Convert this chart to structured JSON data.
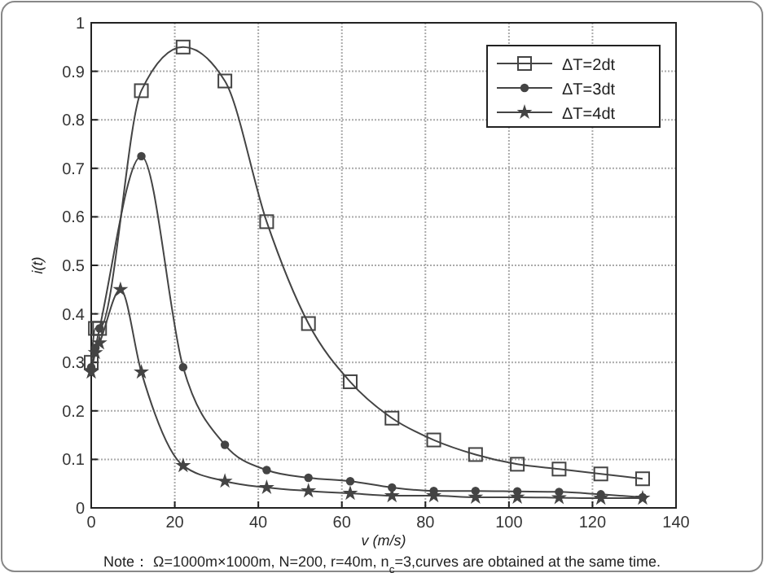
{
  "chart_data": {
    "type": "line",
    "xlabel": "v (m/s)",
    "ylabel": "i(t)",
    "xlim": [
      0,
      140
    ],
    "ylim": [
      0,
      1
    ],
    "xticks": [
      0,
      20,
      40,
      60,
      80,
      100,
      120,
      140
    ],
    "yticks": [
      0,
      0.1,
      0.2,
      0.3,
      0.4,
      0.5,
      0.6,
      0.7,
      0.8,
      0.9,
      1
    ],
    "grid": true,
    "legend": "top right",
    "line_style": "solid",
    "annotations": [
      "Note： Ω=1000m×1000m, N=200, r=40m, n$_{c}$=3,curves are obtained at the same time."
    ],
    "series": [
      {
        "name": "ΔT=2dt",
        "color": "#444444",
        "marker": "square",
        "x": [
          0,
          1,
          2,
          12,
          22,
          32,
          42,
          52,
          62,
          72,
          82,
          92,
          102,
          112,
          122,
          132
        ],
        "values": [
          0.3,
          0.37,
          0.37,
          0.86,
          0.95,
          0.88,
          0.59,
          0.38,
          0.26,
          0.185,
          0.14,
          0.11,
          0.09,
          0.08,
          0.07,
          0.06
        ]
      },
      {
        "name": "ΔT=3dt",
        "color": "#444444",
        "marker": "circle",
        "x": [
          0,
          1,
          2,
          12,
          22,
          32,
          42,
          52,
          62,
          72,
          82,
          92,
          102,
          112,
          122,
          132
        ],
        "values": [
          0.29,
          0.33,
          0.37,
          0.725,
          0.29,
          0.13,
          0.078,
          0.062,
          0.055,
          0.042,
          0.035,
          0.035,
          0.034,
          0.033,
          0.028,
          0.022
        ]
      },
      {
        "name": "ΔT=4dt",
        "color": "#444444",
        "marker": "star",
        "x": [
          0,
          1,
          2,
          7,
          12,
          22,
          32,
          42,
          52,
          62,
          72,
          82,
          92,
          102,
          112,
          122,
          132
        ],
        "values": [
          0.28,
          0.32,
          0.34,
          0.45,
          0.28,
          0.087,
          0.055,
          0.042,
          0.035,
          0.03,
          0.025,
          0.025,
          0.022,
          0.022,
          0.021,
          0.02,
          0.02
        ]
      }
    ]
  }
}
